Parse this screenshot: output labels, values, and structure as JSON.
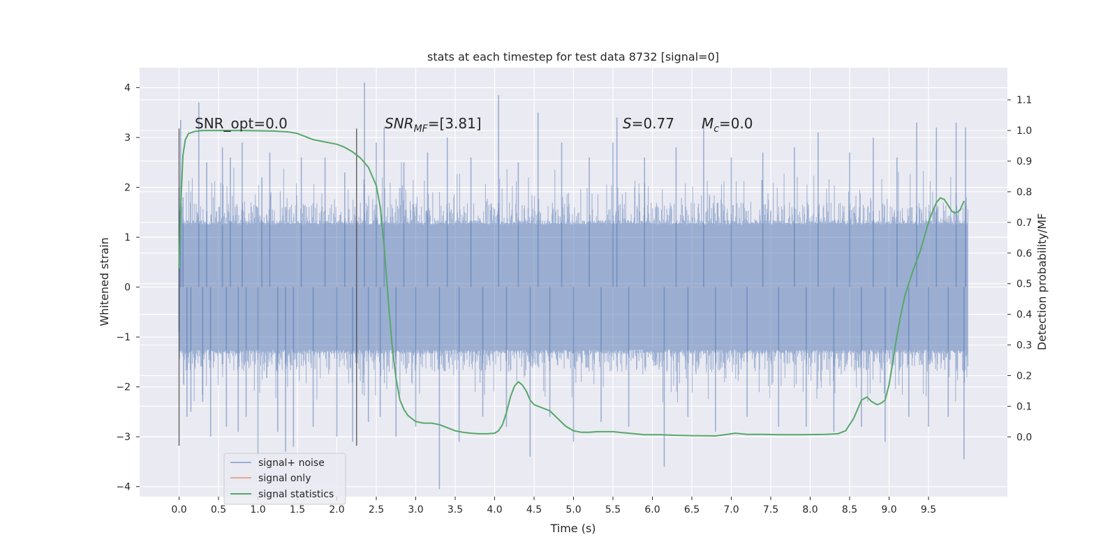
{
  "chart_data": {
    "type": "line",
    "title": "stats at each timestep for test data 8732 [signal=0]",
    "xlabel": "Time (s)",
    "ylabel": "Whitened strain",
    "ylabel_right": "Detection probability/MF",
    "xlim": [
      -0.5,
      10.5
    ],
    "ylim": [
      -4.2,
      4.4
    ],
    "ylim_right": [
      -0.195,
      1.205
    ],
    "xticks": [
      "0.0",
      "0.5",
      "1.0",
      "1.5",
      "2.0",
      "2.5",
      "3.0",
      "3.5",
      "4.0",
      "4.5",
      "5.0",
      "5.5",
      "6.0",
      "6.5",
      "7.0",
      "7.5",
      "8.0",
      "8.5",
      "9.0",
      "9.5"
    ],
    "yticks": [
      "4",
      "3",
      "2",
      "1",
      "0",
      "−1",
      "−2",
      "−3",
      "−4"
    ],
    "yticks_right": [
      "1.1",
      "1.0",
      "0.9",
      "0.8",
      "0.7",
      "0.6",
      "0.5",
      "0.4",
      "0.3",
      "0.2",
      "0.1",
      "0.0"
    ],
    "grid": true,
    "legend_position": "lower-left",
    "annotations": {
      "snr_opt": "SNR_opt=0.0",
      "snr_mf_base": "SNR",
      "snr_mf_sub": "MF",
      "snr_mf_value": "=[3.81]",
      "s_base": "S",
      "s_value": "=0.77",
      "mc_base": "M",
      "mc_sub": "c",
      "mc_value": "=0.0"
    },
    "vlines": [
      0.0,
      2.25
    ],
    "series": [
      {
        "name": "signal+ noise",
        "color": "#4c72b0",
        "description": "whitened strain noise filling roughly -1.3..1.3 with spikes",
        "spikes": [
          [
            0.0,
            2.0
          ],
          [
            0.0,
            -0.9
          ],
          [
            0.02,
            3.35
          ],
          [
            0.05,
            1.8
          ],
          [
            0.1,
            -2.6
          ],
          [
            0.15,
            -2.5
          ],
          [
            0.25,
            3.7
          ],
          [
            0.3,
            -2.3
          ],
          [
            0.35,
            2.5
          ],
          [
            0.4,
            -3.0
          ],
          [
            0.55,
            2.8
          ],
          [
            0.6,
            -2.8
          ],
          [
            0.65,
            2.6
          ],
          [
            0.75,
            -2.9
          ],
          [
            0.8,
            2.9
          ],
          [
            0.85,
            -2.6
          ],
          [
            1.0,
            -3.4
          ],
          [
            1.05,
            2.2
          ],
          [
            1.15,
            2.7
          ],
          [
            1.25,
            -2.9
          ],
          [
            1.35,
            -3.3
          ],
          [
            1.45,
            -3.2
          ],
          [
            1.55,
            2.6
          ],
          [
            1.7,
            -2.8
          ],
          [
            1.85,
            2.6
          ],
          [
            2.0,
            -3.0
          ],
          [
            2.1,
            2.3
          ],
          [
            2.2,
            -3.1
          ],
          [
            2.35,
            4.1
          ],
          [
            2.4,
            -2.7
          ],
          [
            2.5,
            2.9
          ],
          [
            2.55,
            -2.6
          ],
          [
            2.6,
            3.2
          ],
          [
            2.75,
            -3.0
          ],
          [
            2.85,
            2.5
          ],
          [
            3.0,
            -2.8
          ],
          [
            3.15,
            2.7
          ],
          [
            3.3,
            -4.05
          ],
          [
            3.4,
            3.0
          ],
          [
            3.55,
            -3.1
          ],
          [
            3.7,
            2.6
          ],
          [
            3.85,
            -2.6
          ],
          [
            4.05,
            3.85
          ],
          [
            4.15,
            -2.8
          ],
          [
            4.3,
            2.5
          ],
          [
            4.45,
            -3.4
          ],
          [
            4.55,
            3.5
          ],
          [
            4.7,
            -2.6
          ],
          [
            4.85,
            2.9
          ],
          [
            5.0,
            -3.1
          ],
          [
            5.2,
            2.6
          ],
          [
            5.35,
            -2.7
          ],
          [
            5.5,
            2.9
          ],
          [
            5.55,
            3.4
          ],
          [
            5.7,
            -2.8
          ],
          [
            5.9,
            2.6
          ],
          [
            6.15,
            -3.6
          ],
          [
            6.3,
            2.8
          ],
          [
            6.45,
            -2.6
          ],
          [
            6.65,
            3.4
          ],
          [
            6.8,
            -2.9
          ],
          [
            7.0,
            2.6
          ],
          [
            7.2,
            -2.6
          ],
          [
            7.4,
            2.7
          ],
          [
            7.6,
            -2.8
          ],
          [
            7.8,
            2.8
          ],
          [
            7.95,
            -2.8
          ],
          [
            8.1,
            3.1
          ],
          [
            8.3,
            -2.9
          ],
          [
            8.5,
            2.7
          ],
          [
            8.65,
            -2.8
          ],
          [
            8.8,
            3.0
          ],
          [
            8.95,
            -3.1
          ],
          [
            9.1,
            2.6
          ],
          [
            9.25,
            -2.6
          ],
          [
            9.35,
            3.3
          ],
          [
            9.5,
            -2.8
          ],
          [
            9.6,
            3.2
          ],
          [
            9.75,
            -2.6
          ],
          [
            9.85,
            3.3
          ],
          [
            9.95,
            -3.45
          ],
          [
            9.97,
            3.2
          ]
        ]
      },
      {
        "name": "signal only",
        "color": "#dd8452",
        "x": [
          0.0,
          10.0
        ],
        "y": [
          0.0,
          0.0
        ]
      },
      {
        "name": "signal statistics",
        "color": "#55a868",
        "axis": "right",
        "x": [
          0.0,
          0.02,
          0.05,
          0.08,
          0.12,
          0.2,
          0.3,
          0.5,
          0.8,
          1.0,
          1.2,
          1.4,
          1.5,
          1.6,
          1.7,
          1.8,
          2.0,
          2.1,
          2.2,
          2.3,
          2.4,
          2.5,
          2.55,
          2.6,
          2.65,
          2.7,
          2.75,
          2.8,
          2.85,
          2.9,
          3.0,
          3.1,
          3.2,
          3.3,
          3.4,
          3.5,
          3.6,
          3.7,
          3.8,
          3.9,
          4.0,
          4.05,
          4.1,
          4.15,
          4.2,
          4.25,
          4.3,
          4.35,
          4.4,
          4.45,
          4.5,
          4.6,
          4.7,
          4.8,
          4.9,
          5.0,
          5.1,
          5.2,
          5.3,
          5.5,
          5.7,
          5.9,
          6.1,
          6.3,
          6.5,
          6.8,
          6.95,
          7.05,
          7.2,
          7.4,
          7.6,
          7.9,
          8.2,
          8.35,
          8.45,
          8.55,
          8.65,
          8.72,
          8.78,
          8.85,
          8.9,
          8.95,
          9.0,
          9.05,
          9.1,
          9.15,
          9.2,
          9.3,
          9.4,
          9.5,
          9.55,
          9.6,
          9.65,
          9.7,
          9.75,
          9.8,
          9.85,
          9.9,
          9.95
        ],
        "y": [
          0.55,
          0.75,
          0.92,
          0.97,
          0.99,
          0.997,
          1.0,
          1.0,
          1.0,
          0.999,
          0.998,
          0.995,
          0.99,
          0.98,
          0.97,
          0.965,
          0.955,
          0.945,
          0.93,
          0.91,
          0.88,
          0.82,
          0.75,
          0.62,
          0.45,
          0.3,
          0.19,
          0.12,
          0.09,
          0.07,
          0.05,
          0.045,
          0.045,
          0.04,
          0.03,
          0.02,
          0.015,
          0.012,
          0.01,
          0.01,
          0.012,
          0.02,
          0.04,
          0.08,
          0.13,
          0.165,
          0.18,
          0.17,
          0.15,
          0.12,
          0.105,
          0.095,
          0.085,
          0.06,
          0.035,
          0.02,
          0.015,
          0.015,
          0.017,
          0.017,
          0.012,
          0.007,
          0.007,
          0.005,
          0.004,
          0.003,
          0.008,
          0.012,
          0.008,
          0.008,
          0.007,
          0.007,
          0.008,
          0.01,
          0.02,
          0.06,
          0.12,
          0.13,
          0.115,
          0.105,
          0.11,
          0.12,
          0.17,
          0.25,
          0.33,
          0.4,
          0.46,
          0.54,
          0.61,
          0.7,
          0.735,
          0.765,
          0.78,
          0.775,
          0.755,
          0.735,
          0.73,
          0.74,
          0.77
        ]
      }
    ]
  }
}
